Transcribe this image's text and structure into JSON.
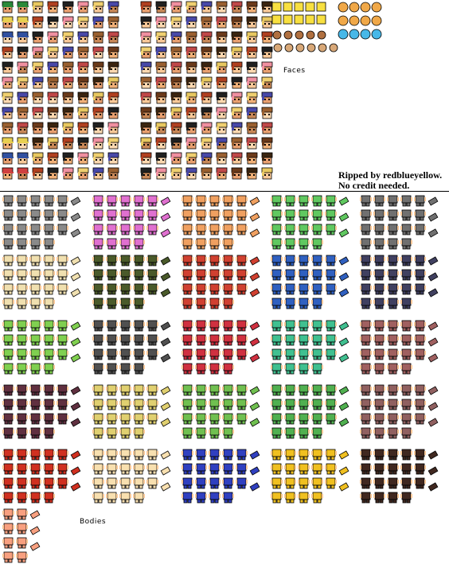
{
  "labels": {
    "faces": "Faces",
    "bodies": "Bodies"
  },
  "credit": {
    "line1": "Ripped by redblueyellow.",
    "line2": "No credit needed."
  },
  "sheet_type": "sprite-sheet",
  "faces": {
    "skin_colors": [
      "#f8c898",
      "#f0b078",
      "#e8a070",
      "#fcd8b0",
      "#c88858"
    ],
    "hair_colors": [
      "#6b3a1a",
      "#3a2410",
      "#e8c860",
      "#b04020",
      "#202020",
      "#f090a0",
      "#f0d070",
      "#4848a8",
      "#9a6030",
      "#c04848"
    ],
    "hat_colors": [
      "#2a8a3a",
      "#e8d050",
      "#3050a0",
      "#d04040"
    ]
  },
  "accessories": {
    "yellow_icons": "#f8e040",
    "bear_color": "#f0a848",
    "orb_color": "#48b8e8"
  },
  "bodies": {
    "outfits": [
      [
        "#8a8a8a",
        "#e070d0",
        "#f0a060",
        "#60c860",
        "#707070"
      ],
      [
        "#f0e0b0",
        "#4a5a2a",
        "#d04030",
        "#3060c0",
        "#404060"
      ],
      [
        "#80d050",
        "#505050",
        "#d03040",
        "#40c090",
        "#a06060"
      ],
      [
        "#603040",
        "#e0d070",
        "#70c050",
        "#50b050",
        "#906060"
      ],
      [
        "#d03020",
        "#f8e0b0",
        "#3040c0",
        "#f0c020",
        "#402820"
      ],
      [
        "#f8a080"
      ]
    ],
    "skin": "#f8c898"
  }
}
